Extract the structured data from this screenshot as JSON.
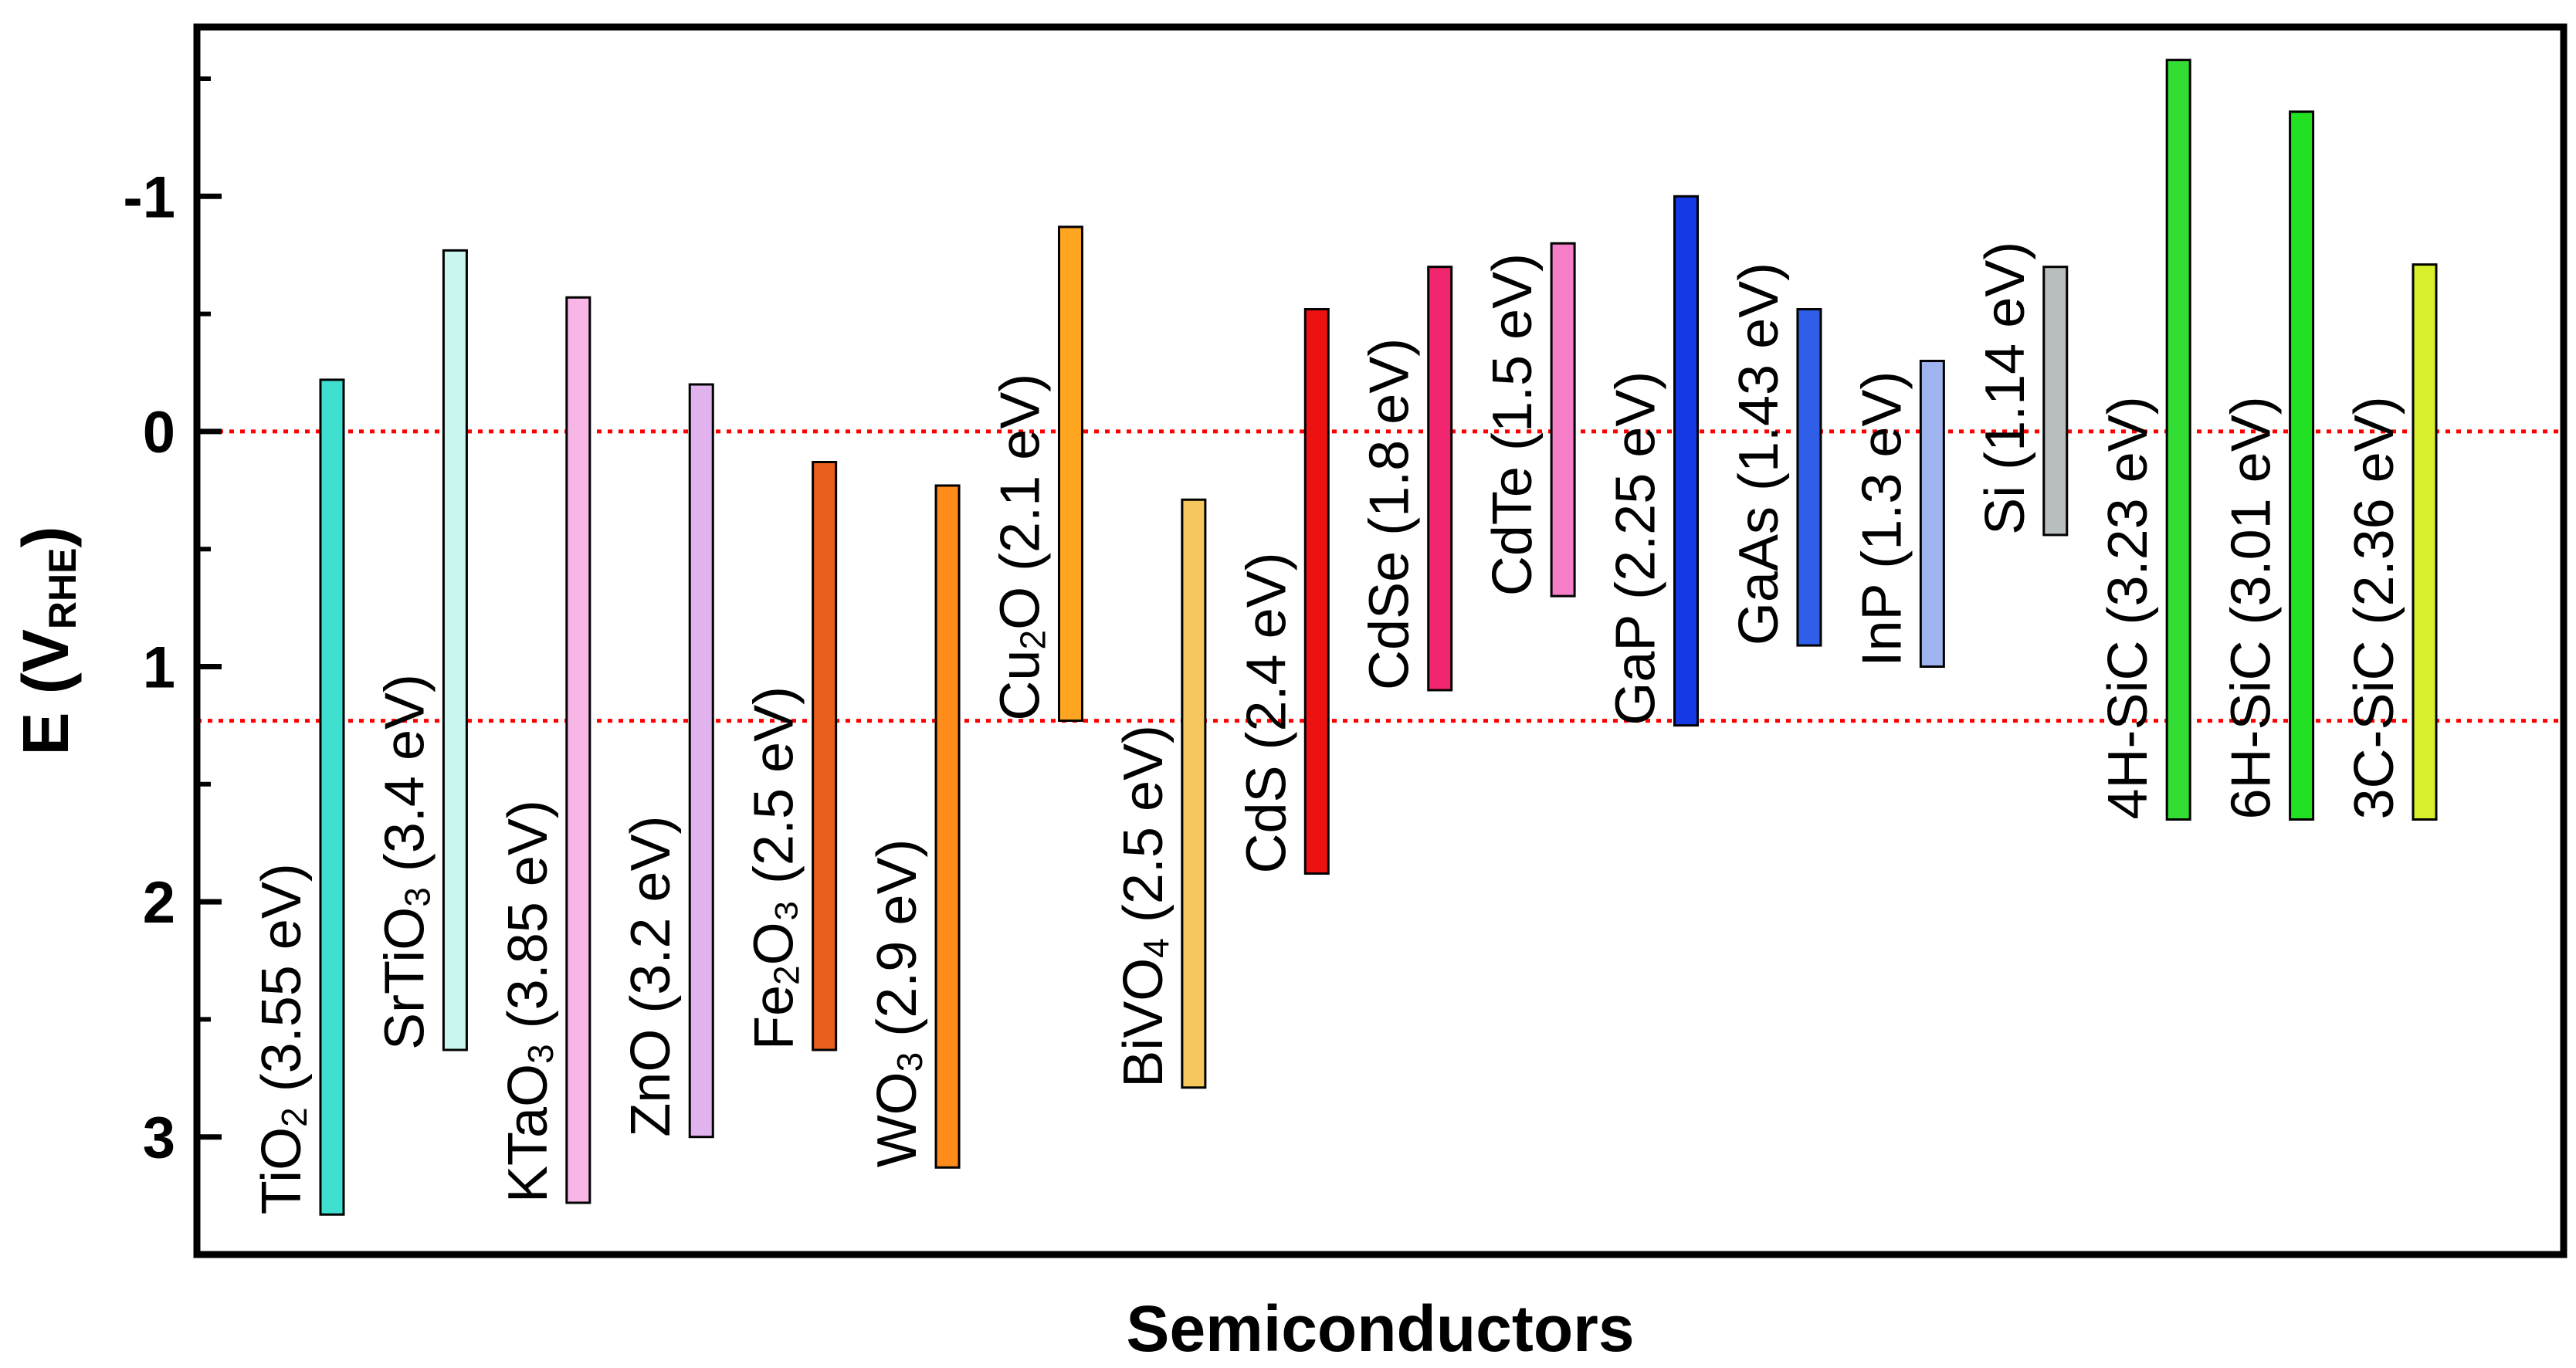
{
  "chart_data": {
    "type": "bar",
    "title": "",
    "xlabel": "Semiconductors",
    "ylabel_main": "E (V",
    "ylabel_sub": "RHE",
    "ylabel_close": ")",
    "y_axis_inverted": true,
    "ylim": [
      3.5,
      -1.72
    ],
    "y_ticks": [
      -1,
      0,
      1,
      2,
      3
    ],
    "y_tick_labels": [
      "-1",
      "0",
      "1",
      "2",
      "3"
    ],
    "reference_lines": [
      {
        "value": 0,
        "color": "#ff0000",
        "style": "dotted"
      },
      {
        "value": 1.23,
        "color": "#ff0000",
        "style": "dotted"
      }
    ],
    "series": [
      {
        "name": "TiO2",
        "label_main": "TiO",
        "label_sub": "2",
        "label_rest": " (3.55 eV)",
        "cb": -0.22,
        "vb": 3.33,
        "color": "#40e0d0"
      },
      {
        "name": "SrTiO3",
        "label_main": "SrTiO",
        "label_sub": "3",
        "label_rest": " (3.4 eV)",
        "cb": -0.77,
        "vb": 2.63,
        "color": "#c9f7f0"
      },
      {
        "name": "KTaO3",
        "label_main": "KTaO",
        "label_sub": "3",
        "label_rest": " (3.85 eV)",
        "cb": -0.57,
        "vb": 3.28,
        "color": "#f7b6e6"
      },
      {
        "name": "ZnO",
        "label_main": "ZnO",
        "label_sub": "",
        "label_rest": " (3.2 eV)",
        "cb": -0.2,
        "vb": 3.0,
        "color": "#e0b3ef"
      },
      {
        "name": "Fe2O3",
        "label_main": "Fe",
        "label_sub": "2",
        "label_rest": "O₃ (2.5 eV)",
        "cb": 0.13,
        "vb": 2.63,
        "color": "#e8601c"
      },
      {
        "name": "WO3",
        "label_main": "WO",
        "label_sub": "3",
        "label_rest": " (2.9 eV)",
        "cb": 0.23,
        "vb": 3.13,
        "color": "#ff8c1a"
      },
      {
        "name": "Cu2O",
        "label_main": "Cu",
        "label_sub": "2",
        "label_rest": "O (2.1 eV)",
        "cb": -0.87,
        "vb": 1.23,
        "color": "#ffa51f"
      },
      {
        "name": "BiVO4",
        "label_main": "BiVO",
        "label_sub": "4",
        "label_rest": " (2.5 eV)",
        "cb": 0.29,
        "vb": 2.79,
        "color": "#f6c75c"
      },
      {
        "name": "CdS",
        "label_main": "CdS",
        "label_sub": "",
        "label_rest": " (2.4 eV)",
        "cb": -0.52,
        "vb": 1.88,
        "color": "#ee1111"
      },
      {
        "name": "CdSe",
        "label_main": "CdSe",
        "label_sub": "",
        "label_rest": " (1.8 eV)",
        "cb": -0.7,
        "vb": 1.1,
        "color": "#f0266e"
      },
      {
        "name": "CdTe",
        "label_main": "CdTe",
        "label_sub": "",
        "label_rest": " (1.5 eV)",
        "cb": -0.8,
        "vb": 0.7,
        "color": "#f47fc8"
      },
      {
        "name": "GaP",
        "label_main": "GaP",
        "label_sub": "",
        "label_rest": " (2.25 eV)",
        "cb": -1.0,
        "vb": 1.25,
        "color": "#1639e6"
      },
      {
        "name": "GaAs",
        "label_main": "GaAs",
        "label_sub": "",
        "label_rest": " (1.43 eV)",
        "cb": -0.52,
        "vb": 0.91,
        "color": "#2f5fe8"
      },
      {
        "name": "InP",
        "label_main": "InP",
        "label_sub": "",
        "label_rest": " (1.3 eV)",
        "cb": -0.3,
        "vb": 1.0,
        "color": "#9fb4ee"
      },
      {
        "name": "Si",
        "label_main": "Si",
        "label_sub": "",
        "label_rest": " (1.14 eV)",
        "cb": -0.7,
        "vb": 0.44,
        "color": "#b8bdbd"
      },
      {
        "name": "4H-SiC",
        "label_main": "4H-SiC",
        "label_sub": "",
        "label_rest": " (3.23 eV)",
        "cb": -1.58,
        "vb": 1.65,
        "color": "#33dd33"
      },
      {
        "name": "6H-SiC",
        "label_main": "6H-SiC",
        "label_sub": "",
        "label_rest": " (3.01 eV)",
        "cb": -1.36,
        "vb": 1.65,
        "color": "#22e022"
      },
      {
        "name": "3C-SiC",
        "label_main": "3C-SiC",
        "label_sub": "",
        "label_rest": " (2.36 eV)",
        "cb": -0.71,
        "vb": 1.65,
        "color": "#d8ef2b"
      }
    ]
  }
}
